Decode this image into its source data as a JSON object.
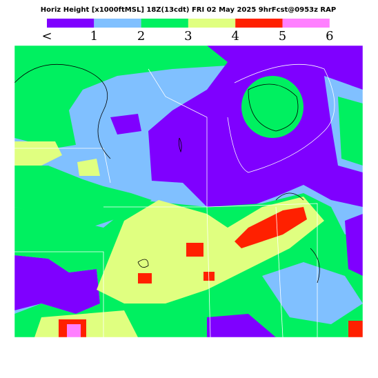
{
  "header": {
    "title": "Horiz Height [x1000ftMSL] 18Z(13cdt) FRI 02 May 2025 9hrFcst@0953z RAP",
    "legend": [
      {
        "color": "#7f00ff"
      },
      {
        "color": "#80c0ff"
      },
      {
        "color": "#00f060"
      },
      {
        "color": "#e0ff80"
      },
      {
        "color": "#ff2000"
      },
      {
        "color": "#ff80ff"
      }
    ],
    "labels": [
      "<",
      "1",
      "2",
      "3",
      "4",
      "5",
      "6"
    ]
  }
}
